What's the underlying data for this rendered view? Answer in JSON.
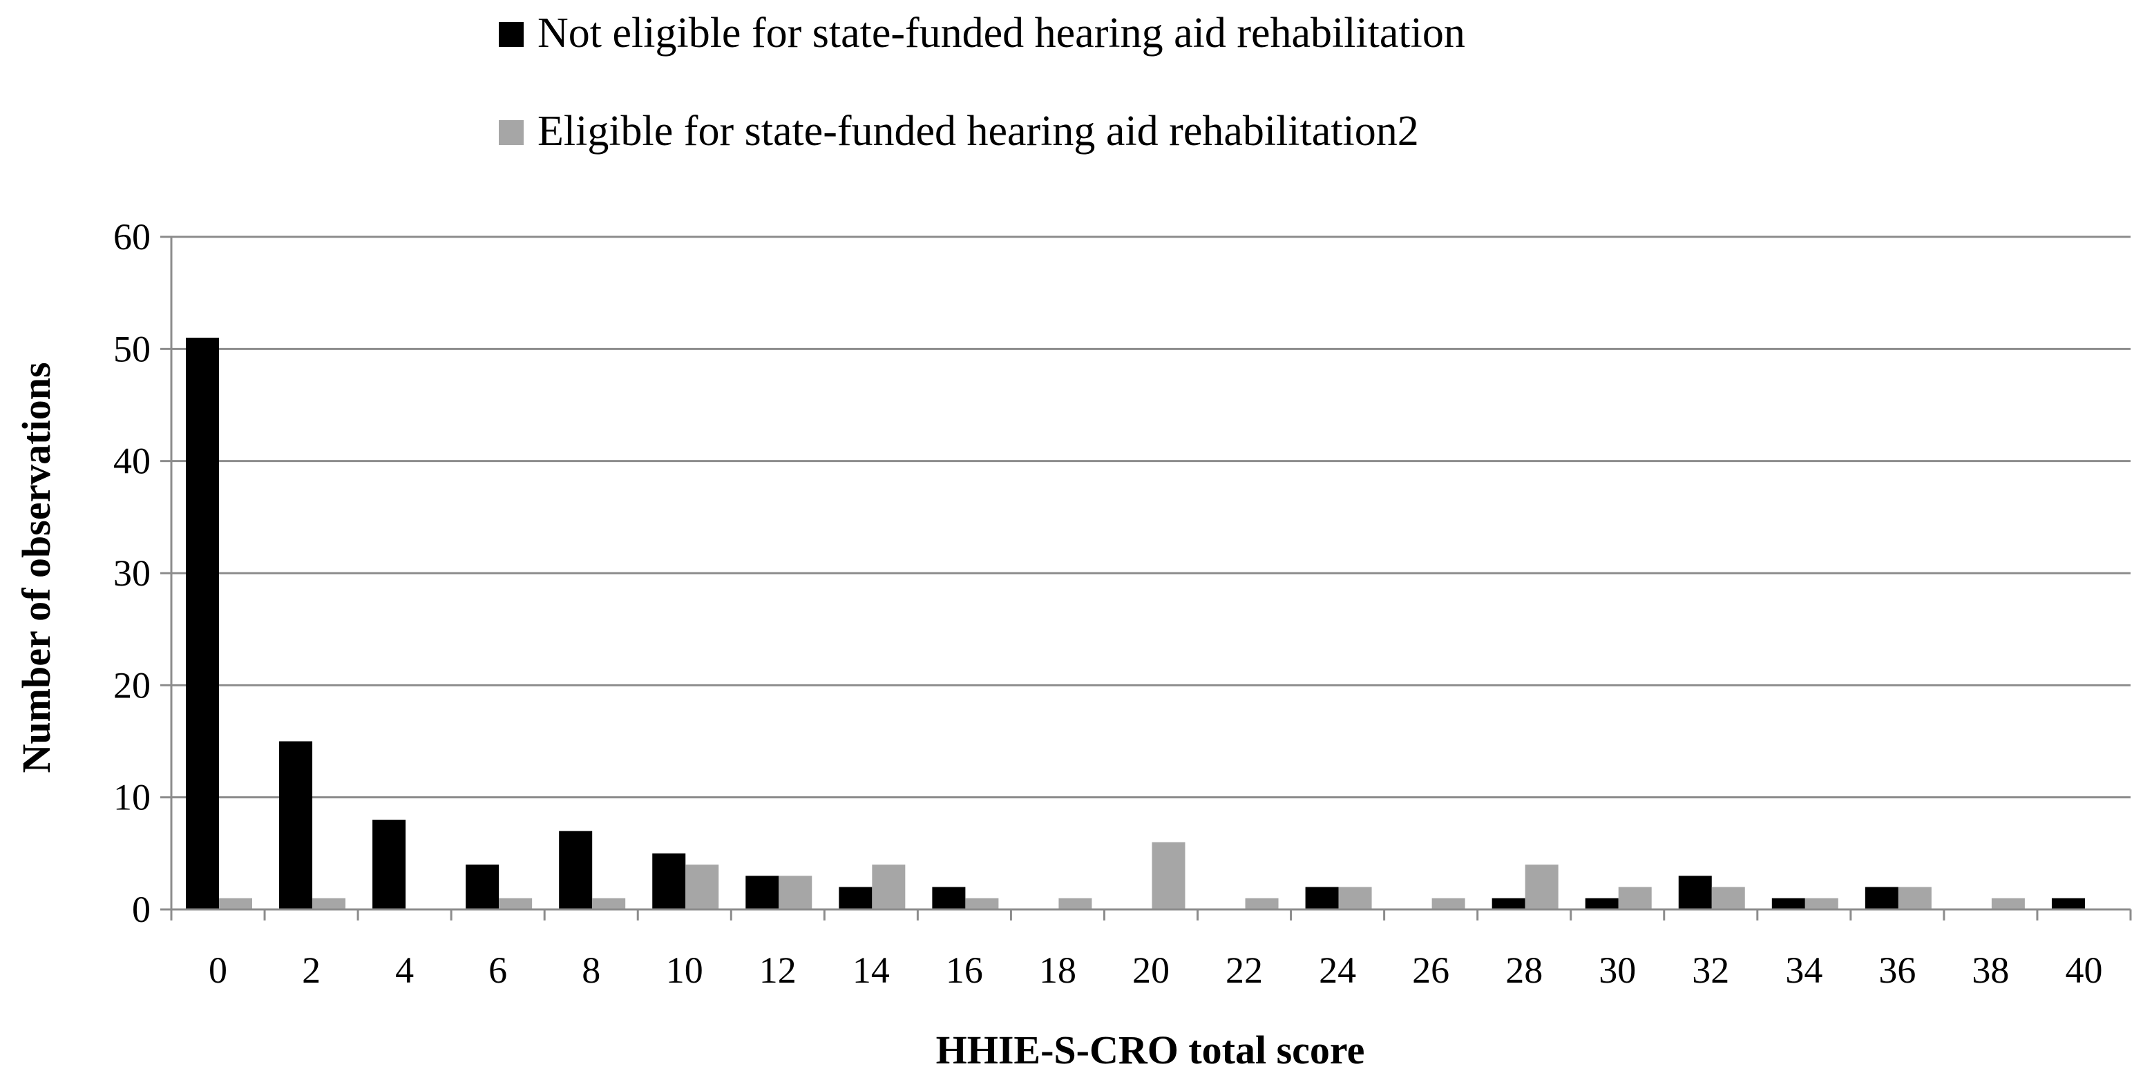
{
  "chart_data": {
    "type": "bar",
    "title": "",
    "xlabel": "HHIE-S-CRO total score",
    "ylabel": "Number of observations",
    "ylim": [
      0,
      60
    ],
    "yticks": [
      "0",
      "10",
      "20",
      "30",
      "40",
      "50",
      "60"
    ],
    "grid": "horizontal",
    "legend_position": "top",
    "categories": [
      "0",
      "2",
      "4",
      "6",
      "8",
      "10",
      "12",
      "14",
      "16",
      "18",
      "20",
      "22",
      "24",
      "26",
      "28",
      "30",
      "32",
      "34",
      "36",
      "38",
      "40"
    ],
    "series": [
      {
        "name": "Not eligible for state-funded hearing aid rehabilitation",
        "color": "#000000",
        "values": [
          51,
          15,
          8,
          4,
          7,
          5,
          3,
          2,
          2,
          0,
          0,
          0,
          2,
          0,
          1,
          1,
          3,
          1,
          2,
          0,
          1
        ]
      },
      {
        "name": "Eligible for state-funded hearing aid rehabilitation2",
        "color": "#a6a6a6",
        "values": [
          1,
          1,
          0,
          1,
          1,
          4,
          3,
          4,
          1,
          1,
          6,
          1,
          2,
          1,
          4,
          2,
          2,
          1,
          2,
          1,
          0
        ]
      }
    ]
  }
}
